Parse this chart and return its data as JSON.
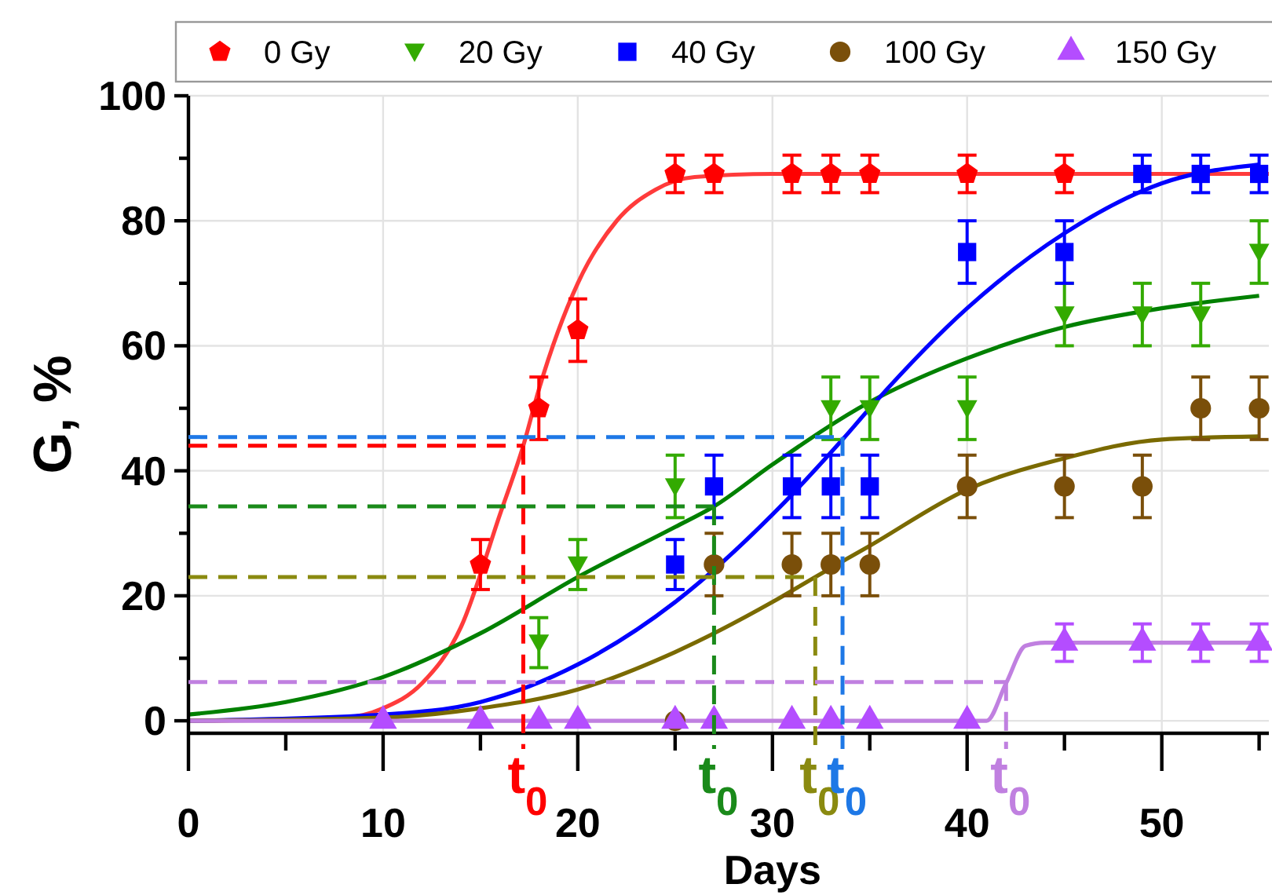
{
  "chart_data": {
    "type": "scatter",
    "xlabel": "Days",
    "ylabel": "G, %",
    "xlim": [
      0,
      55.5
    ],
    "ylim": [
      -2,
      100
    ],
    "xticks": [
      0,
      {
        "value": 5,
        "label": null
      },
      10,
      {
        "value": 15,
        "label": null
      },
      20,
      {
        "value": 25,
        "label": null
      },
      30,
      {
        "value": 35,
        "label": null
      },
      40,
      {
        "value": 45,
        "label": null
      },
      50,
      {
        "value": 55,
        "label": null
      }
    ],
    "yticks": [
      0,
      {
        "value": 10,
        "label": null
      },
      20,
      {
        "value": 30,
        "label": null
      },
      40,
      {
        "value": 50,
        "label": null
      },
      60,
      {
        "value": 70,
        "label": null
      },
      80,
      {
        "value": 90,
        "label": null
      },
      100
    ],
    "grid": true,
    "legend": "top",
    "series": [
      {
        "type": "line",
        "color": "#ff3b3b",
        "marker": "none",
        "line_style": "solid",
        "x": [
          0,
          8,
          10,
          12,
          14,
          16,
          17.2,
          18,
          20,
          22,
          24,
          26,
          30,
          55.5
        ],
        "values": [
          0,
          0.5,
          2,
          6,
          15,
          33,
          44,
          53,
          70,
          80,
          85,
          87,
          87.5,
          87.5
        ]
      },
      {
        "type": "line",
        "color": "#008000",
        "marker": "none",
        "line_style": "solid",
        "x": [
          0,
          5,
          10,
          15,
          20,
          25,
          27,
          30,
          35,
          40,
          45,
          50,
          55
        ],
        "values": [
          1,
          3,
          7,
          14,
          23,
          31,
          34.3,
          41,
          51,
          58,
          63,
          66,
          68
        ]
      },
      {
        "type": "line",
        "color": "#0000ff",
        "marker": "none",
        "line_style": "solid",
        "x": [
          0,
          10,
          15,
          20,
          25,
          30,
          33.6,
          35,
          40,
          45,
          50,
          55
        ],
        "values": [
          0,
          1,
          3,
          9,
          19,
          33,
          45,
          50,
          66,
          78,
          86,
          89
        ]
      },
      {
        "type": "line",
        "color": "#7a6a00",
        "marker": "none",
        "line_style": "solid",
        "x": [
          0,
          10,
          15,
          20,
          25,
          30,
          32.2,
          35,
          40,
          45,
          50,
          55
        ],
        "values": [
          0,
          0.5,
          2,
          5,
          11,
          19,
          23,
          28,
          37,
          42,
          45,
          45.5
        ]
      },
      {
        "type": "line",
        "color": "#c080e0",
        "marker": "none",
        "line_style": "solid",
        "x": [
          0,
          41,
          42,
          43,
          44,
          55.5
        ],
        "values": [
          0,
          0,
          6,
          12,
          12.5,
          12.5
        ]
      },
      {
        "name": "0 Gy",
        "color": "#ff0000",
        "x": [
          15,
          18,
          20,
          25,
          27,
          31,
          33,
          35,
          40,
          45
        ],
        "values": [
          25,
          50,
          62.5,
          87.5,
          87.5,
          87.5,
          87.5,
          87.5,
          87.5,
          87.5
        ],
        "errors": [
          4,
          5,
          5,
          3,
          3,
          3,
          3,
          3,
          3,
          3
        ]
      },
      {
        "name": "20 Gy",
        "color": "#33aa00",
        "marker": "triangle-down",
        "x": [
          18,
          20,
          25,
          33,
          35,
          40,
          45,
          49,
          52,
          55
        ],
        "values": [
          12.5,
          25,
          37.5,
          50,
          50,
          50,
          65,
          65,
          65,
          75
        ],
        "errors": [
          4,
          4,
          5,
          5,
          5,
          5,
          5,
          5,
          5,
          5
        ]
      },
      {
        "name": "40 Gy",
        "color": "#0000ff",
        "marker": "square",
        "x": [
          25,
          27,
          31,
          33,
          35,
          40,
          45,
          49,
          52,
          55
        ],
        "values": [
          25,
          37.5,
          37.5,
          37.5,
          37.5,
          75,
          75,
          87.5,
          87.5,
          87.5
        ],
        "errors": [
          4,
          5,
          5,
          5,
          5,
          5,
          5,
          3,
          3,
          3
        ]
      },
      {
        "name": "100 Gy",
        "color": "#7a4f0a",
        "marker": "circle",
        "x": [
          25,
          27,
          31,
          33,
          35,
          40,
          45,
          49,
          52,
          55
        ],
        "values": [
          0,
          25,
          25,
          25,
          25,
          37.5,
          37.5,
          37.5,
          50,
          50
        ],
        "errors": [
          null,
          5,
          5,
          5,
          5,
          5,
          5,
          5,
          5,
          5
        ]
      },
      {
        "name": "150 Gy",
        "color": "#b44dff",
        "marker": "triangle",
        "x": [
          10,
          15,
          18,
          20,
          25,
          27,
          31,
          33,
          35,
          40,
          45,
          49,
          52,
          55
        ],
        "values": [
          0,
          0,
          0,
          0,
          0,
          0,
          0,
          0,
          0,
          0,
          12.5,
          12.5,
          12.5,
          12.5
        ],
        "errors": [
          null,
          null,
          null,
          null,
          null,
          null,
          null,
          null,
          null,
          null,
          3,
          3,
          3,
          3
        ]
      }
    ],
    "ref_lines": [
      {
        "axis": "y",
        "value": 44,
        "color": "#ff0000",
        "line_style": "dashed"
      },
      {
        "axis": "x",
        "value": 17.2,
        "label": "t$_{0}$",
        "color": "#ff0000",
        "line_style": "dashed"
      },
      {
        "axis": "y",
        "value": 34.3,
        "color": "#1a8a1a",
        "line_style": "dashed"
      },
      {
        "axis": "x",
        "value": 27,
        "label": "t$_{0}$",
        "color": "#1a8a1a",
        "line_style": "dashed"
      },
      {
        "axis": "y",
        "value": 23,
        "color": "#8a8a10",
        "line_style": "dashed"
      },
      {
        "axis": "x",
        "value": 32.2,
        "label": "t$_{0}$",
        "color": "#8a8a10",
        "line_style": "dashed"
      },
      {
        "axis": "y",
        "value": 45.4,
        "color": "#1e78e6",
        "line_style": "dashed"
      },
      {
        "axis": "x",
        "value": 33.6,
        "label": "t$_{0}$",
        "color": "#1e78e6",
        "line_style": "dashed"
      },
      {
        "axis": "y",
        "value": 6.2,
        "color": "#c080e0",
        "line_style": "dashed"
      },
      {
        "axis": "x",
        "value": 42,
        "label": "t$_{0}$",
        "color": "#c080e0",
        "line_style": "dashed"
      }
    ]
  }
}
